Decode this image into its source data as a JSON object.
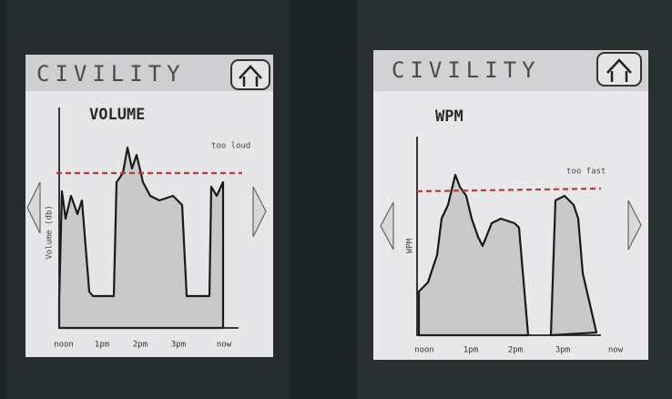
{
  "screens": [
    {
      "title": "CIVILITY",
      "chart_title": "VOLUME",
      "threshold_label": "too loud",
      "y_axis_label": "Volume (db)",
      "x_labels": [
        "noon",
        "1pm",
        "2pm",
        "3pm",
        "now"
      ]
    },
    {
      "title": "CIVILITY",
      "chart_title": "WPM",
      "threshold_label": "too fast",
      "y_axis_label": "WPM",
      "x_labels": [
        "noon",
        "1pm",
        "2pm",
        "3pm",
        "now"
      ]
    }
  ]
}
